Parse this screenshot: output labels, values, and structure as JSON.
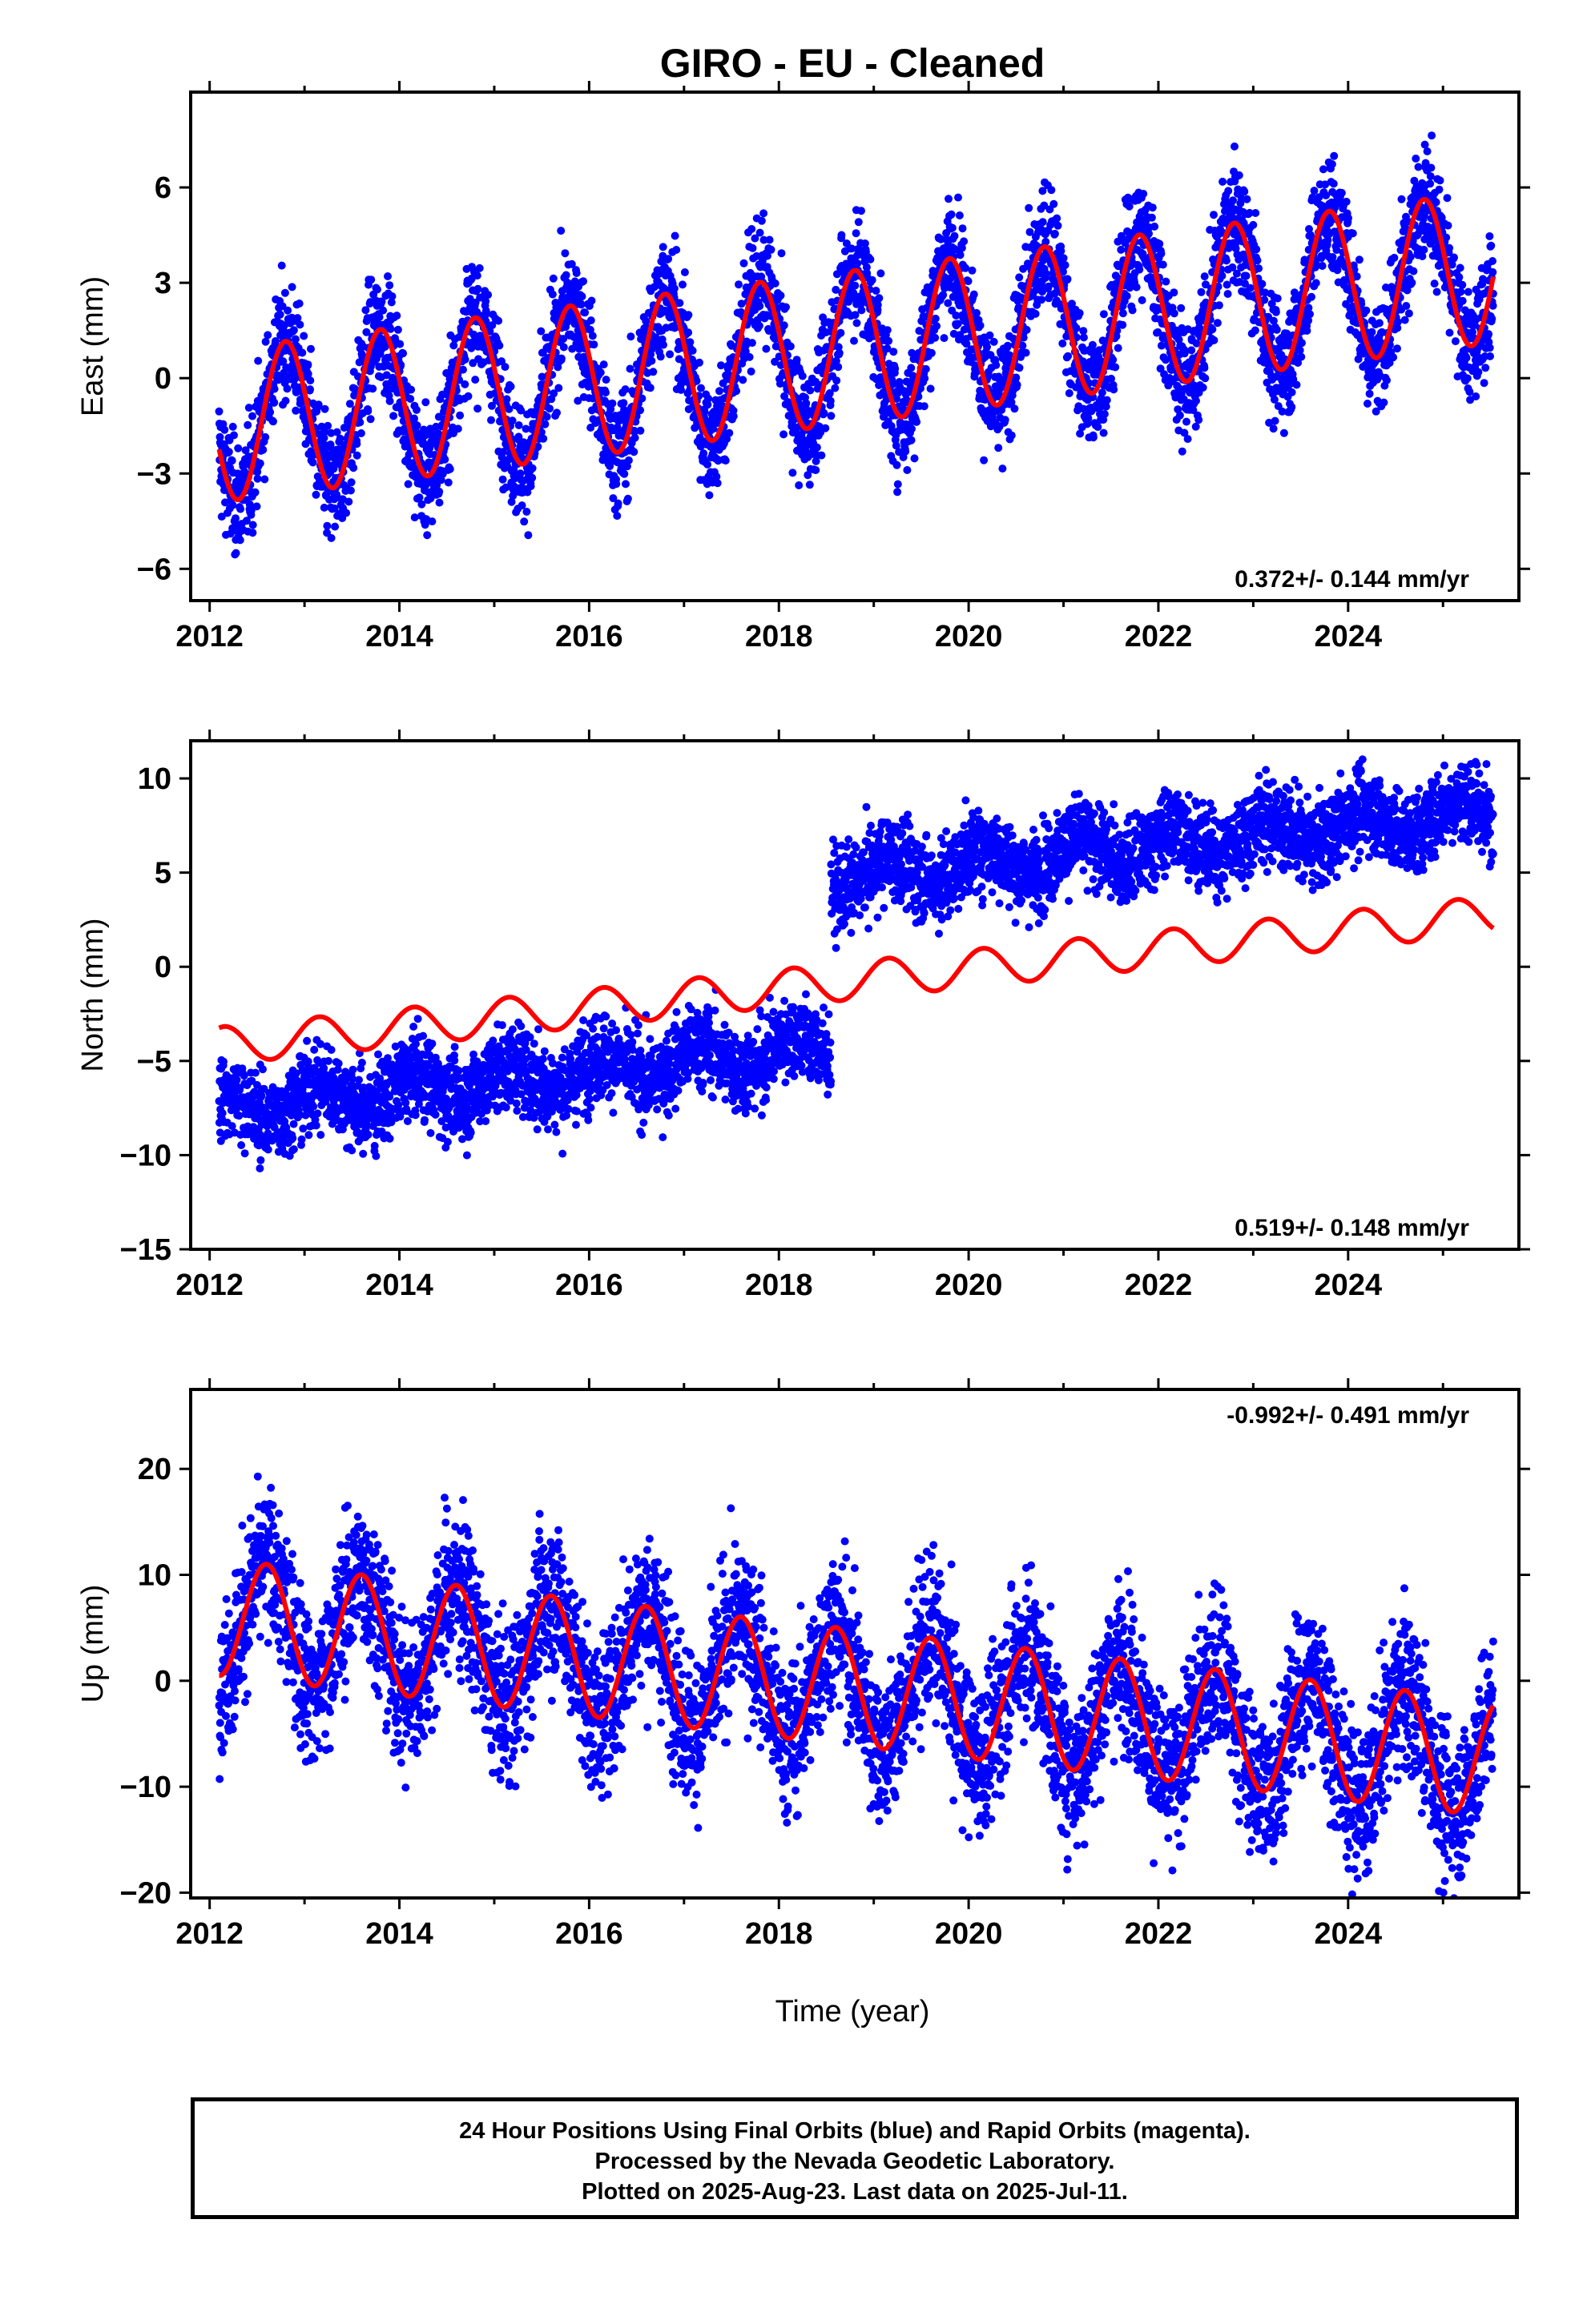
{
  "title": "GIRO  - EU - Cleaned",
  "colors": {
    "data": "#0000ff",
    "model": "#ff0000",
    "frame": "#000000"
  },
  "xlabel": "Time (year)",
  "footer": {
    "line1": "24 Hour Positions Using Final Orbits (blue) and Rapid Orbits (magenta).",
    "line2": "Processed by the Nevada Geodetic Laboratory.",
    "line3": "Plotted on 2025-Aug-23. Last data on 2025-Jul-11."
  },
  "chart_data": [
    {
      "type": "scatter",
      "component": "east",
      "ylabel": "East (mm)",
      "xlim": [
        2011.8,
        2025.8
      ],
      "ylim": [
        -7.0,
        9.0
      ],
      "xticks": [
        "2012",
        "2014",
        "2016",
        "2018",
        "2020",
        "2022",
        "2024"
      ],
      "yticks": [
        "6",
        "3",
        "0",
        "−3",
        "−6"
      ],
      "rate_label": "0.372+/- 0.144 mm/yr",
      "rate_position": "bottom-right",
      "series": [
        {
          "name": "Final Orbits (blue)",
          "kind": "points",
          "start": 2012.1,
          "end": 2025.53,
          "trend_start": -1.5,
          "rate": 0.372,
          "annual_amp": 2.4,
          "annual_phase": 0.55,
          "noise": 0.9,
          "offsets": []
        },
        {
          "kind": "line",
          "start": 2012.1,
          "end": 2025.53,
          "trend_start": -1.5,
          "rate": 0.372,
          "annual_amp": 2.4,
          "annual_phase": 0.55
        }
      ]
    },
    {
      "type": "scatter",
      "component": "north",
      "ylabel": "North (mm)",
      "xlim": [
        2011.8,
        2025.8
      ],
      "ylim": [
        -15.0,
        12.0
      ],
      "xticks": [
        "2012",
        "2014",
        "2016",
        "2018",
        "2020",
        "2022",
        "2024"
      ],
      "yticks": [
        "10",
        "5",
        "0",
        "−5",
        "−10",
        "−15"
      ],
      "rate_label": "0.519+/- 0.148 mm/yr",
      "rate_position": "bottom-right",
      "series": [
        {
          "name": "Final Orbits (blue)",
          "kind": "points",
          "start": 2012.1,
          "end": 2025.53,
          "trend_start": -7.6,
          "rate": 0.519,
          "annual_amp": 0.8,
          "annual_phase": 0.9,
          "noise": 1.1,
          "offsets": [
            {
              "epoch": 2018.55,
              "size": 8.9
            }
          ]
        },
        {
          "kind": "line",
          "start": 2012.1,
          "end": 2025.53,
          "trend_start": -4.2,
          "rate": 0.519,
          "annual_amp": 1.0,
          "annual_phase": 0.9
        }
      ]
    },
    {
      "type": "scatter",
      "component": "up",
      "ylabel": "Up (mm)",
      "xlim": [
        2011.8,
        2025.8
      ],
      "ylim": [
        -20.5,
        27.5
      ],
      "xticks": [
        "2012",
        "2014",
        "2016",
        "2018",
        "2020",
        "2022",
        "2024"
      ],
      "yticks": [
        "20",
        "10",
        "0",
        "−10",
        "−20"
      ],
      "rate_label": "-0.992+/- 0.491 mm/yr",
      "rate_position": "top-right",
      "series": [
        {
          "name": "Final Orbits (blue)",
          "kind": "points",
          "start": 2012.1,
          "end": 2025.53,
          "trend_start": 6.0,
          "rate": -0.992,
          "annual_amp": 5.5,
          "annual_phase": 0.35,
          "noise": 3.6,
          "offsets": []
        },
        {
          "kind": "line",
          "start": 2012.1,
          "end": 2025.53,
          "trend_start": 6.0,
          "rate": -0.992,
          "annual_amp": 5.5,
          "annual_phase": 0.35
        }
      ]
    }
  ]
}
